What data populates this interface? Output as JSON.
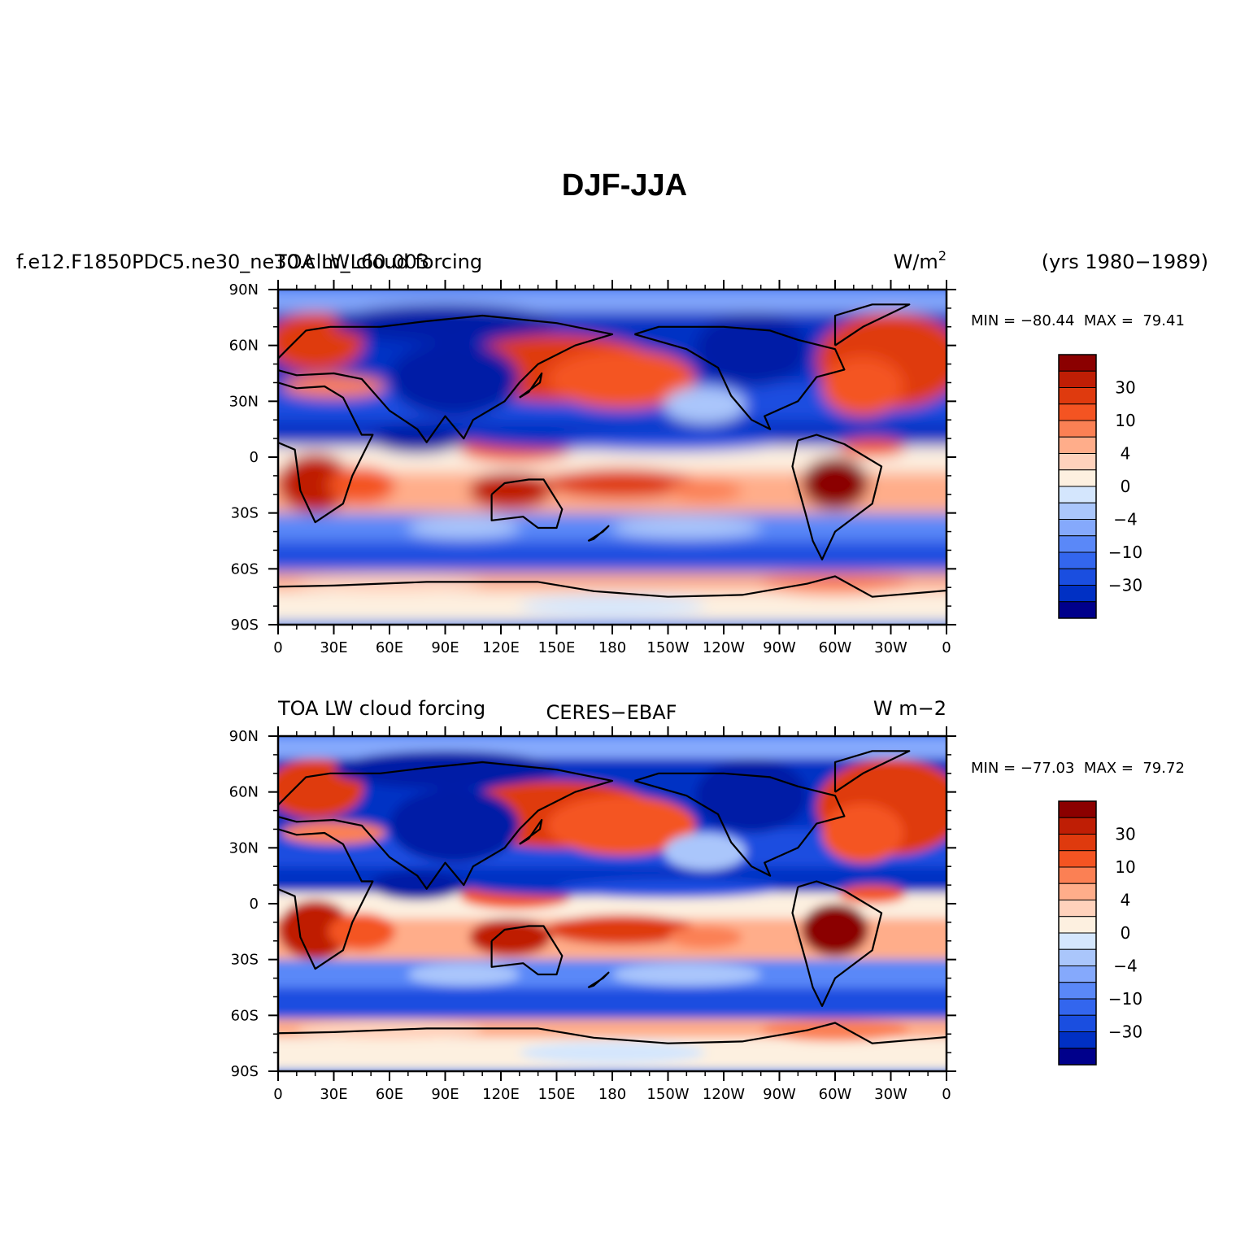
{
  "figure": {
    "title": "DJF-JJA"
  },
  "colors": {
    "levels": [
      "#00008b",
      "#001aa6",
      "#0030c4",
      "#1a4ee0",
      "#3366ee",
      "#5a88f8",
      "#85a9fc",
      "#aac6fb",
      "#d4e6fd",
      "#fdf0e0",
      "#ffd2bc",
      "#ffad8a",
      "#fb8054",
      "#f45422",
      "#df3a0e",
      "#bf1e05",
      "#8b0000"
    ]
  },
  "panels": [
    {
      "left_label": "f.e12.F1850PDC5.ne30_ne30.clm_L60.003",
      "center_label": "TOA LW cloud forcing",
      "right_label": "W/m",
      "right_label_sup": "2",
      "extra_label": "(yrs 1980−1989)",
      "min_label": "MIN =",
      "min_value": "−80.44",
      "max_label": "MAX =",
      "max_value": "79.41"
    },
    {
      "left_label": "TOA LW cloud forcing",
      "center_label": "CERES−EBAF",
      "right_label": "W m−2",
      "right_label_sup": "",
      "extra_label": "",
      "min_label": "MIN =",
      "min_value": "−77.03",
      "max_label": "MAX =",
      "max_value": "79.72"
    }
  ],
  "axes": {
    "lat_ticks": [
      "90N",
      "60N",
      "30N",
      "0",
      "30S",
      "60S",
      "90S"
    ],
    "lon_ticks": [
      "0",
      "30E",
      "60E",
      "90E",
      "120E",
      "150E",
      "180",
      "150W",
      "120W",
      "90W",
      "60W",
      "30W",
      "0"
    ]
  },
  "colorbar": {
    "labels": [
      "30",
      "10",
      "4",
      "0",
      "−4",
      "−10",
      "−30"
    ]
  },
  "chart_data": {
    "type": "heatmap",
    "title": "DJF-JJA",
    "variable": "TOA LW cloud forcing",
    "units": "W/m2",
    "x_range": [
      0,
      360
    ],
    "y_range": [
      -90,
      90
    ],
    "panels": [
      {
        "name": "f.e12.F1850PDC5.ne30_ne30.clm_L60.003",
        "years": "1980−1989",
        "min": -80.44,
        "max": 79.41
      },
      {
        "name": "CERES−EBAF",
        "min": -77.03,
        "max": 79.72
      }
    ],
    "colorbar_ticks": [
      30,
      10,
      4,
      0,
      -4,
      -10,
      -30
    ]
  }
}
